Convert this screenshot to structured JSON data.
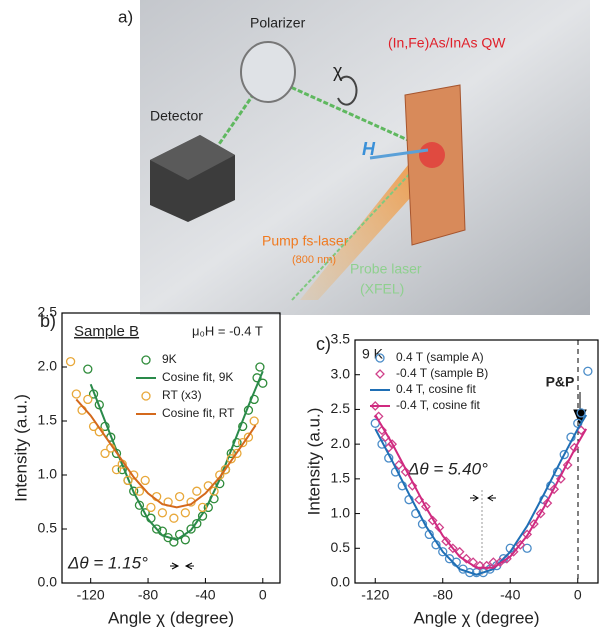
{
  "illustration": {
    "label": "a)",
    "polarizer": "Polarizer",
    "chi": "χ",
    "sample": "(In,Fe)As/InAs QW",
    "detector": "Detector",
    "field": "H",
    "pump": "Pump fs-laser",
    "pump_wavelength": "(800 nm)",
    "probe": "Probe laser",
    "probe_source": "(XFEL)"
  },
  "chart_data": [
    {
      "type": "scatter",
      "panel_label": "b)",
      "xlabel": "Angle χ (degree)",
      "ylabel": "Intensity (a.u.)",
      "annotations": [
        "Sample B",
        "μ₀H = -0.4 T",
        "Δθ = 1.15°"
      ],
      "xlim": [
        -140,
        12
      ],
      "xticks": [
        -120,
        -80,
        -40,
        0
      ],
      "ylim": [
        0,
        2.5
      ],
      "yticks": [
        {
          "value": 0,
          "label": "0.0"
        },
        0.5,
        {
          "value": 1,
          "label": "1.0"
        },
        1.5,
        {
          "value": 2,
          "label": "2.0"
        },
        2.5
      ],
      "series": [
        {
          "name": "9K",
          "color": "#2e8b3a",
          "marker": "circle",
          "x": [
            -122,
            -118,
            -114,
            -110,
            -106,
            -102,
            -98,
            -94,
            -90,
            -86,
            -82,
            -78,
            -74,
            -70,
            -66,
            -62,
            -58,
            -54,
            -50,
            -46,
            -42,
            -38,
            -34,
            -30,
            -26,
            -22,
            -18,
            -14,
            -10,
            -6,
            -4,
            -2,
            0
          ],
          "values": [
            1.98,
            1.75,
            1.65,
            1.45,
            1.35,
            1.2,
            1.05,
            0.95,
            0.85,
            0.72,
            0.65,
            0.6,
            0.5,
            0.48,
            0.42,
            0.38,
            0.45,
            0.4,
            0.5,
            0.55,
            0.62,
            0.7,
            0.78,
            0.92,
            1.05,
            1.2,
            1.3,
            1.45,
            1.6,
            1.7,
            1.9,
            2.0,
            1.85
          ]
        },
        {
          "name": "Cosine fit, 9K",
          "color": "#2a8a4a",
          "marker": "line",
          "x": [
            -120,
            -110,
            -100,
            -90,
            -80,
            -70,
            -60,
            -50,
            -40,
            -30,
            -20,
            -10,
            0
          ],
          "values": [
            1.84,
            1.5,
            1.16,
            0.84,
            0.59,
            0.44,
            0.4,
            0.49,
            0.68,
            0.96,
            1.3,
            1.64,
            1.96
          ]
        },
        {
          "name": "RT (x3)",
          "color": "#e8a83a",
          "marker": "circle",
          "x": [
            -134,
            -130,
            -126,
            -122,
            -118,
            -114,
            -110,
            -106,
            -102,
            -98,
            -94,
            -90,
            -86,
            -82,
            -78,
            -74,
            -70,
            -66,
            -62,
            -58,
            -54,
            -50,
            -46,
            -42,
            -38,
            -34,
            -30,
            -26,
            -22,
            -18,
            -14,
            -10,
            -6
          ],
          "values": [
            2.05,
            1.75,
            1.6,
            1.7,
            1.45,
            1.4,
            1.2,
            1.25,
            1.05,
            1.1,
            0.95,
            1.0,
            0.85,
            0.95,
            0.7,
            0.8,
            0.65,
            0.75,
            0.6,
            0.8,
            0.65,
            0.75,
            0.85,
            0.7,
            0.9,
            0.85,
            1.0,
            1.05,
            1.15,
            1.2,
            1.3,
            1.35,
            1.5
          ]
        },
        {
          "name": "Cosine fit, RT",
          "color": "#d4691c",
          "marker": "line",
          "x": [
            -130,
            -120,
            -110,
            -100,
            -90,
            -80,
            -70,
            -60,
            -50,
            -40,
            -30,
            -20,
            -10,
            -5
          ],
          "values": [
            1.7,
            1.55,
            1.36,
            1.17,
            0.98,
            0.83,
            0.73,
            0.7,
            0.73,
            0.83,
            0.98,
            1.17,
            1.36,
            1.46
          ]
        }
      ]
    },
    {
      "type": "scatter",
      "panel_label": "c)",
      "xlabel": "Angle χ (degree)",
      "ylabel": "Intensity (a.u.)",
      "annotations": [
        "9 K",
        "P&P",
        "Δθ = 5.40°"
      ],
      "xlim": [
        -132,
        12
      ],
      "xticks": [
        -120,
        -80,
        -40,
        0
      ],
      "ylim": [
        0,
        3.5
      ],
      "yticks": [
        {
          "value": 0,
          "label": "0.0"
        },
        0.5,
        {
          "value": 1,
          "label": "1.0"
        },
        1.5,
        {
          "value": 2,
          "label": "2.0"
        },
        2.5,
        {
          "value": 3,
          "label": "3.0"
        },
        3.5
      ],
      "series": [
        {
          "name": "0.4 T (sample A)",
          "color": "#4a8cc8",
          "marker": "circle",
          "x": [
            -120,
            -116,
            -112,
            -108,
            -104,
            -100,
            -96,
            -92,
            -88,
            -84,
            -80,
            -76,
            -72,
            -68,
            -64,
            -60,
            -56,
            -52,
            -48,
            -44,
            -40,
            -30,
            -20,
            -16,
            -12,
            -8,
            -4,
            0,
            2,
            6
          ],
          "values": [
            2.3,
            2.0,
            1.8,
            1.6,
            1.4,
            1.2,
            1.0,
            0.85,
            0.7,
            0.55,
            0.45,
            0.35,
            0.3,
            0.2,
            0.15,
            0.15,
            0.15,
            0.2,
            0.25,
            0.35,
            0.5,
            0.5,
            1.2,
            1.4,
            1.6,
            1.85,
            2.1,
            2.3,
            2.45,
            3.05
          ]
        },
        {
          "name": "-0.4 T (sample B)",
          "color": "#d0408a",
          "marker": "diamond",
          "x": [
            -120,
            -118,
            -116,
            -114,
            -112,
            -110,
            -106,
            -102,
            -98,
            -94,
            -90,
            -86,
            -82,
            -78,
            -74,
            -70,
            -66,
            -62,
            -58,
            -54,
            -50,
            -46,
            -42,
            -38,
            -34,
            -30,
            -26,
            -22,
            -18,
            -14,
            -10,
            -6,
            -2,
            2
          ],
          "values": [
            2.55,
            2.4,
            2.2,
            2.1,
            1.95,
            2.0,
            1.7,
            1.6,
            1.4,
            1.2,
            1.1,
            0.9,
            0.8,
            0.6,
            0.5,
            0.45,
            0.35,
            0.3,
            0.25,
            0.25,
            0.3,
            0.3,
            0.35,
            0.45,
            0.55,
            0.7,
            0.85,
            1.0,
            1.15,
            1.35,
            1.5,
            1.7,
            1.95,
            2.2
          ]
        },
        {
          "name": "0.4 T, cosine fit",
          "color": "#1f6fb5",
          "marker": "line",
          "x": [
            -120,
            -110,
            -100,
            -90,
            -80,
            -70,
            -60,
            -50,
            -40,
            -30,
            -20,
            -10,
            0,
            5
          ],
          "values": [
            2.22,
            1.76,
            1.28,
            0.82,
            0.45,
            0.2,
            0.12,
            0.2,
            0.45,
            0.82,
            1.28,
            1.76,
            2.22,
            2.42
          ]
        },
        {
          "name": "-0.4 T, cosine fit",
          "color": "#d02a80",
          "marker": "line",
          "x": [
            -120,
            -110,
            -100,
            -90,
            -80,
            -70,
            -60,
            -50,
            -40,
            -30,
            -20,
            -10,
            0,
            5
          ],
          "values": [
            2.42,
            2.01,
            1.55,
            1.09,
            0.68,
            0.38,
            0.22,
            0.22,
            0.38,
            0.68,
            1.09,
            1.55,
            2.01,
            2.22
          ]
        }
      ]
    }
  ]
}
